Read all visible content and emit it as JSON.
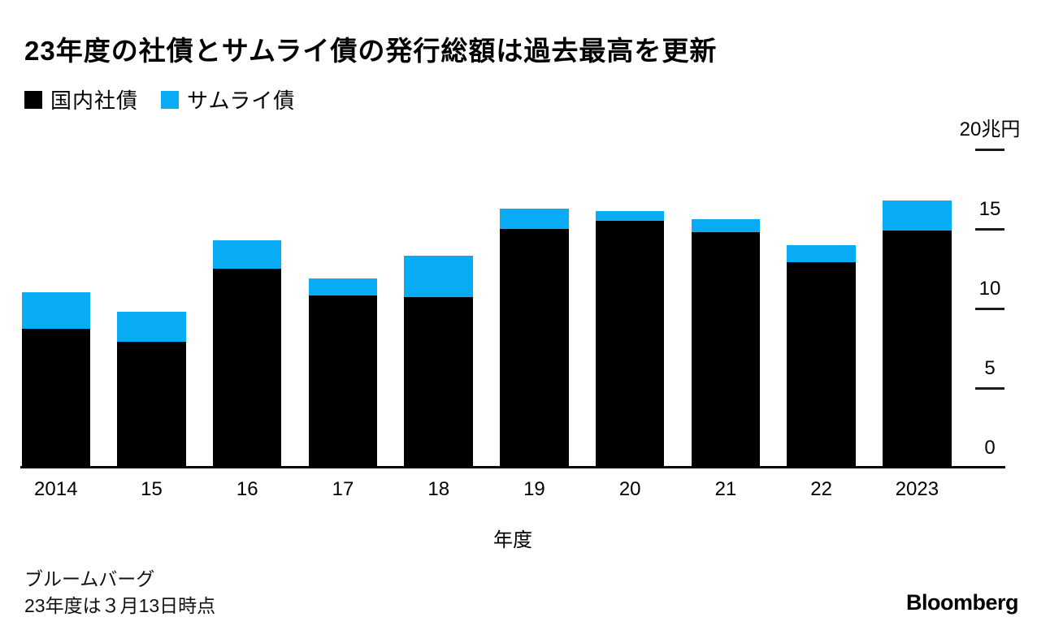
{
  "title": "23年度の社債とサムライ債の発行総額は過去最高を更新",
  "legend": {
    "items": [
      {
        "label": "国内社債",
        "color": "#000000"
      },
      {
        "label": "サムライ債",
        "color": "#0aabf5"
      }
    ]
  },
  "chart_data": {
    "type": "bar",
    "stacked": true,
    "categories": [
      "2014",
      "15",
      "16",
      "17",
      "18",
      "19",
      "20",
      "21",
      "22",
      "2023"
    ],
    "series": [
      {
        "name": "国内社債",
        "color": "#000000",
        "values": [
          8.7,
          7.9,
          12.5,
          10.8,
          10.7,
          15.0,
          15.5,
          14.8,
          12.9,
          14.9
        ]
      },
      {
        "name": "サムライ債",
        "color": "#0aabf5",
        "values": [
          2.3,
          1.9,
          1.8,
          1.1,
          2.6,
          1.3,
          0.6,
          0.8,
          1.1,
          1.9
        ]
      }
    ],
    "totals": [
      11.0,
      9.8,
      14.3,
      11.9,
      13.3,
      16.3,
      16.1,
      15.6,
      14.0,
      16.8
    ],
    "xlabel": "年度",
    "ylabel": "兆円",
    "ylim": [
      0,
      20
    ],
    "yticks": [
      {
        "value": 20,
        "label": "20兆円"
      },
      {
        "value": 15,
        "label": "15"
      },
      {
        "value": 10,
        "label": "10"
      },
      {
        "value": 5,
        "label": "5"
      },
      {
        "value": 0,
        "label": "0"
      }
    ],
    "grid": false,
    "legend_position": "top-left",
    "yaxis_side": "right"
  },
  "footer": {
    "source": "ブルームバーグ",
    "note": "23年度は３月13日時点",
    "logo": "Bloomberg"
  },
  "colors": {
    "background": "#ffffff",
    "domestic_bond": "#000000",
    "samurai_bond": "#0aabf5",
    "axis": "#000000",
    "text": "#000000"
  }
}
